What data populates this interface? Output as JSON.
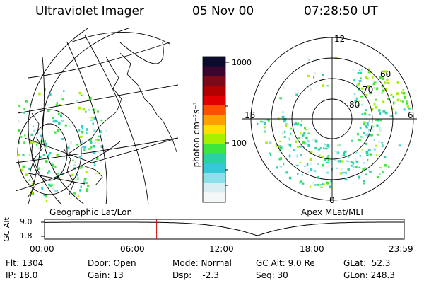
{
  "header": {
    "instrument": "Ultraviolet Imager",
    "date": "05 Nov 00",
    "time": "07:28:50 UT"
  },
  "colorbar": {
    "unit_label": "photon cm⁻²s⁻¹",
    "ticks": [
      "1000",
      "100"
    ],
    "colors": [
      "#0b0b2e",
      "#3a0630",
      "#7a0a18",
      "#b30000",
      "#e30000",
      "#ff5000",
      "#ffa000",
      "#ffe000",
      "#a8f000",
      "#3ce63c",
      "#2ad2a0",
      "#36c8d6",
      "#8ce0ea",
      "#d8eef2",
      "#f4f8f8"
    ]
  },
  "geo_panel": {
    "caption": "Geographic Lat/Lon"
  },
  "polar_panel": {
    "caption": "Apex MLat/MLT",
    "mlt_labels": {
      "top": "12",
      "left": "18",
      "right": "6",
      "bottom": "0"
    },
    "lat_labels": [
      "60",
      "70",
      "80"
    ]
  },
  "altitude_strip": {
    "axis_label": "GC Alt",
    "y_ticks": [
      "9.0",
      "1.8"
    ],
    "x_ticks": [
      "00:00",
      "06:00",
      "12:00",
      "18:00",
      "23:59"
    ],
    "marker_time_hours": 7.48
  },
  "status": {
    "flt": "Flt: 1304",
    "ip": "IP: 18.0",
    "door": "Door: Open",
    "gain": "Gain: 13",
    "mode": "Mode: Normal",
    "dsp": "Dsp:    -2.3",
    "gcalt": "GC Alt: 9.0 Re",
    "seq": "Seq: 30",
    "glat": "GLat:  52.3",
    "glon": "GLon: 248.3"
  }
}
